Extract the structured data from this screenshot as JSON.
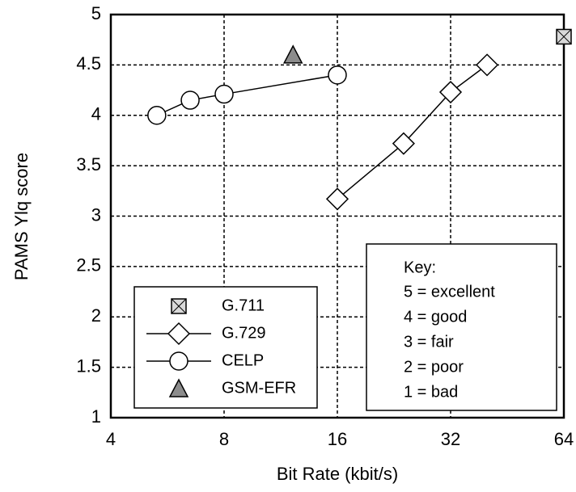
{
  "chart_data": {
    "type": "line",
    "xlabel": "Bit Rate (kbit/s)",
    "ylabel": "PAMS Ylq score",
    "xscale": "log",
    "xlim": [
      4,
      64
    ],
    "xticks": [
      4,
      8,
      16,
      32,
      64
    ],
    "ylim": [
      1,
      5
    ],
    "yticks": [
      1,
      1.5,
      2,
      2.5,
      3,
      3.5,
      4,
      4.5,
      5
    ],
    "grid": true,
    "legend": "lower left",
    "series": [
      {
        "name": "G.711",
        "marker": "square",
        "color": "#d9d9d9",
        "line": false,
        "x": [
          64
        ],
        "values": [
          4.78
        ]
      },
      {
        "name": "G.729",
        "marker": "diamond",
        "color": "#ffffff",
        "line": true,
        "x": [
          16,
          24,
          32,
          40
        ],
        "values": [
          3.17,
          3.72,
          4.23,
          4.5
        ]
      },
      {
        "name": "CELP",
        "marker": "circle",
        "color": "#ffffff",
        "line": true,
        "x": [
          5.3,
          6.5,
          8,
          16
        ],
        "values": [
          4.0,
          4.15,
          4.21,
          4.4
        ]
      },
      {
        "name": "GSM-EFR",
        "marker": "triangle",
        "color": "#8c8c8c",
        "line": false,
        "x": [
          12.2
        ],
        "values": [
          4.6
        ]
      }
    ],
    "key": {
      "title": "Key:",
      "items": [
        "5 = excellent",
        "4 = good",
        "3 = fair",
        "2 = poor",
        "1 = bad"
      ]
    }
  }
}
